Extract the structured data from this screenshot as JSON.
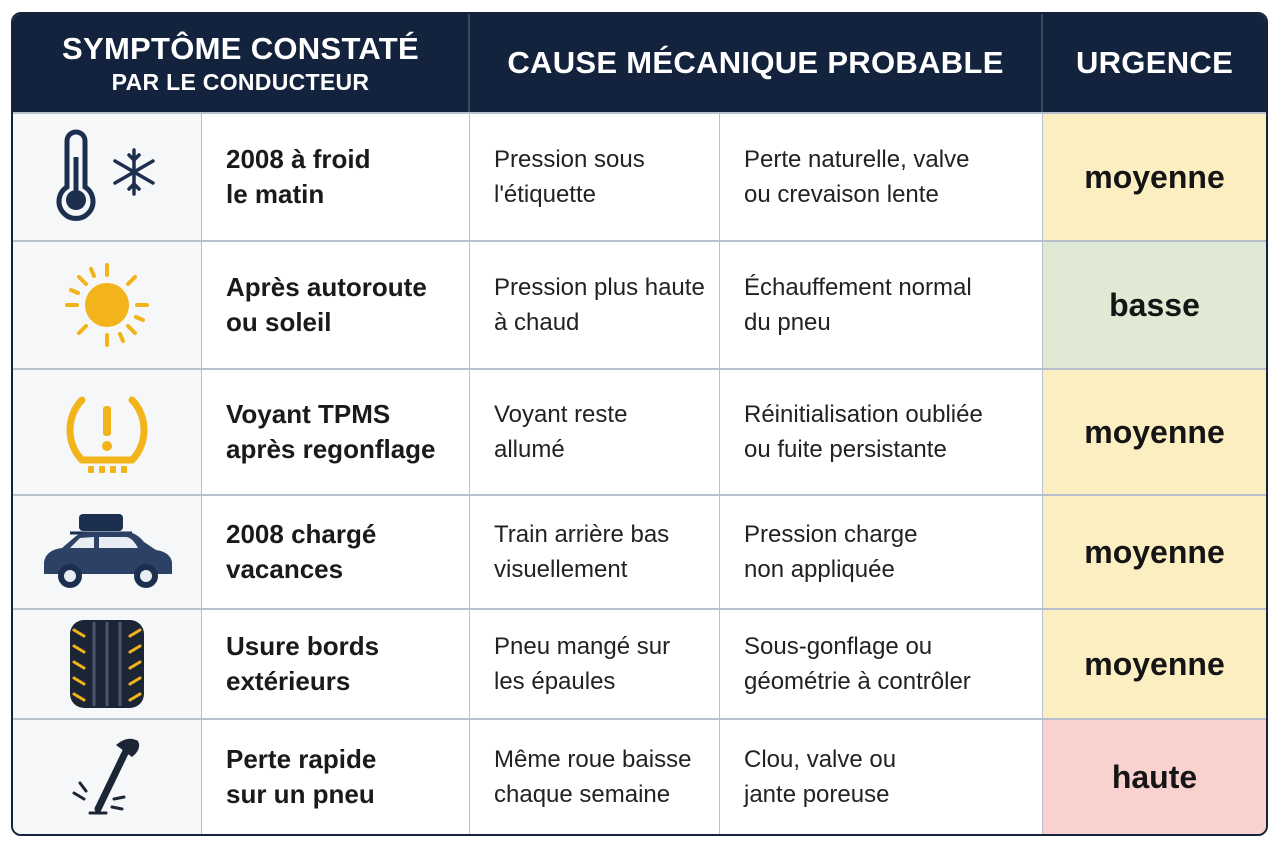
{
  "header": {
    "col1_line1": "SYMPTÔME CONSTATÉ",
    "col1_line2": "PAR LE CONDUCTEUR",
    "col2": "CAUSE MÉCANIQUE PROBABLE",
    "col3": "URGENCE"
  },
  "rows": [
    {
      "icon": "thermometer-snowflake-icon",
      "symptom": [
        "2008 à froid",
        "le matin"
      ],
      "observation": [
        "Pression sous",
        "l'étiquette"
      ],
      "cause": [
        "Perte naturelle, valve",
        "ou crevaison lente"
      ],
      "urgency": "moyenne"
    },
    {
      "icon": "sun-icon",
      "symptom": [
        "Après autoroute",
        "ou soleil"
      ],
      "observation": [
        "Pression plus haute",
        "à chaud"
      ],
      "cause": [
        "Échauffement normal",
        "du pneu"
      ],
      "urgency": "basse"
    },
    {
      "icon": "tpms-warning-icon",
      "symptom": [
        "Voyant TPMS",
        "après regonflage"
      ],
      "observation": [
        "Voyant reste",
        "allumé"
      ],
      "cause": [
        "Réinitialisation oubliée",
        "ou fuite persistante"
      ],
      "urgency": "moyenne"
    },
    {
      "icon": "loaded-car-icon",
      "symptom": [
        "2008 chargé",
        "vacances"
      ],
      "observation": [
        "Train arrière bas",
        "visuellement"
      ],
      "cause": [
        "Pression charge",
        "non appliquée"
      ],
      "urgency": "moyenne"
    },
    {
      "icon": "tire-tread-icon",
      "symptom": [
        "Usure bords",
        "extérieurs"
      ],
      "observation": [
        "Pneu mangé sur",
        "les épaules"
      ],
      "cause": [
        "Sous-gonflage ou",
        "géométrie à contrôler"
      ],
      "urgency": "moyenne"
    },
    {
      "icon": "nail-icon",
      "symptom": [
        "Perte rapide",
        "sur un pneu"
      ],
      "observation": [
        "Même roue baisse",
        "chaque semaine"
      ],
      "cause": [
        "Clou, valve ou",
        "jante poreuse"
      ],
      "urgency": "haute"
    }
  ],
  "colors": {
    "header_bg": "#13233d",
    "moyenne": "#fbefc2",
    "basse": "#dfe9d3",
    "haute": "#f9d2d0",
    "icon_navy": "#1c2f4f",
    "icon_yellow": "#f2b31b"
  }
}
